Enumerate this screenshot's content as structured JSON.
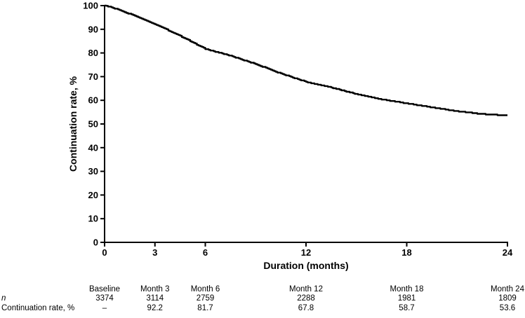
{
  "figure": {
    "background": "#ffffff",
    "ink_color": "#000000"
  },
  "chart_data": {
    "type": "line",
    "subtype": "kaplan-meier-step-curve",
    "title": "",
    "xlabel": "Duration (months)",
    "ylabel": "Continuation rate, %",
    "xlim": [
      0,
      24
    ],
    "ylim": [
      0,
      100
    ],
    "x_ticks": [
      0,
      3,
      6,
      12,
      18,
      24
    ],
    "y_ticks": [
      0,
      10,
      20,
      30,
      40,
      50,
      60,
      70,
      80,
      90,
      100
    ],
    "grid": false,
    "legend_position": "none",
    "series": [
      {
        "name": "Continuation rate",
        "color": "#000000",
        "x": [
          0,
          0.3,
          1,
          2,
          3,
          4.5,
          6,
          7.5,
          9,
          10.5,
          12,
          13.5,
          15,
          16.5,
          18,
          19.5,
          21,
          22.5,
          24
        ],
        "y": [
          100,
          99.6,
          97.8,
          95.1,
          92.2,
          87.2,
          81.7,
          78.8,
          75.3,
          71.3,
          67.8,
          65.4,
          62.6,
          60.4,
          58.7,
          57.0,
          55.4,
          54.2,
          53.6
        ]
      }
    ],
    "key_points": {
      "Baseline": 100,
      "Month 3": 92.2,
      "Month 6": 81.7,
      "Month 12": 67.8,
      "Month 18": 58.7,
      "Month 24": 53.6
    }
  },
  "table": {
    "row_labels": {
      "n": "n",
      "rate": "Continuation rate, %"
    },
    "columns": [
      {
        "label": "Baseline",
        "month": 0,
        "n": "3374",
        "rate": "–"
      },
      {
        "label": "Month 3",
        "month": 3,
        "n": "3114",
        "rate": "92.2"
      },
      {
        "label": "Month 6",
        "month": 6,
        "n": "2759",
        "rate": "81.7"
      },
      {
        "label": "Month 12",
        "month": 12,
        "n": "2288",
        "rate": "67.8"
      },
      {
        "label": "Month 18",
        "month": 18,
        "n": "1981",
        "rate": "58.7"
      },
      {
        "label": "Month 24",
        "month": 24,
        "n": "1809",
        "rate": "53.6"
      }
    ]
  }
}
